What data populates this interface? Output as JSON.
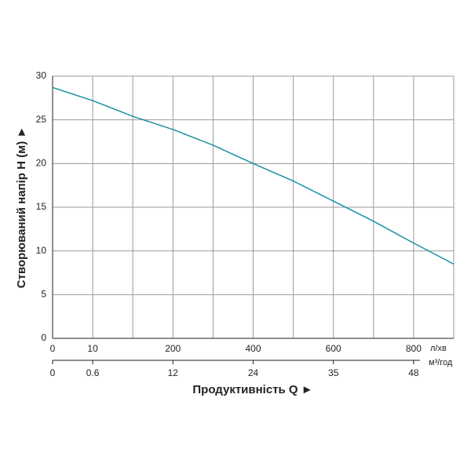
{
  "chart_data": {
    "type": "line",
    "y_label": "Створюваний напір H (м) ►",
    "x_label": "Продуктивність  Q ►",
    "x_unit": "л/хв",
    "x2_unit": "м³/год",
    "xlim": [
      0,
      10
    ],
    "xgrid": [
      0,
      1,
      2,
      3,
      4,
      5,
      6,
      7,
      8,
      9,
      10
    ],
    "xticks": [
      0,
      {
        "value": 1,
        "label": "10"
      },
      {
        "value": 3,
        "label": "200"
      },
      {
        "value": 5,
        "label": "400"
      },
      {
        "value": 7,
        "label": "600"
      },
      {
        "value": 9,
        "label": "800"
      }
    ],
    "x2ticks": [
      0,
      {
        "value": 1,
        "label": "0.6"
      },
      {
        "value": 3,
        "label": "12"
      },
      {
        "value": 5,
        "label": "24"
      },
      {
        "value": 7,
        "label": "35"
      },
      {
        "value": 9,
        "label": "48"
      }
    ],
    "ylim": [
      0,
      30
    ],
    "yticks": [
      0,
      5,
      10,
      15,
      20,
      25,
      30
    ],
    "grid": true,
    "x": [
      0,
      1,
      2,
      3,
      4,
      5,
      6,
      7,
      8,
      9,
      10
    ],
    "series": [
      {
        "color": "#1b8fa0",
        "values": [
          28.7,
          27.2,
          25.4,
          23.9,
          22.1,
          20.0,
          18.0,
          15.7,
          13.4,
          10.9,
          8.5
        ]
      }
    ]
  }
}
